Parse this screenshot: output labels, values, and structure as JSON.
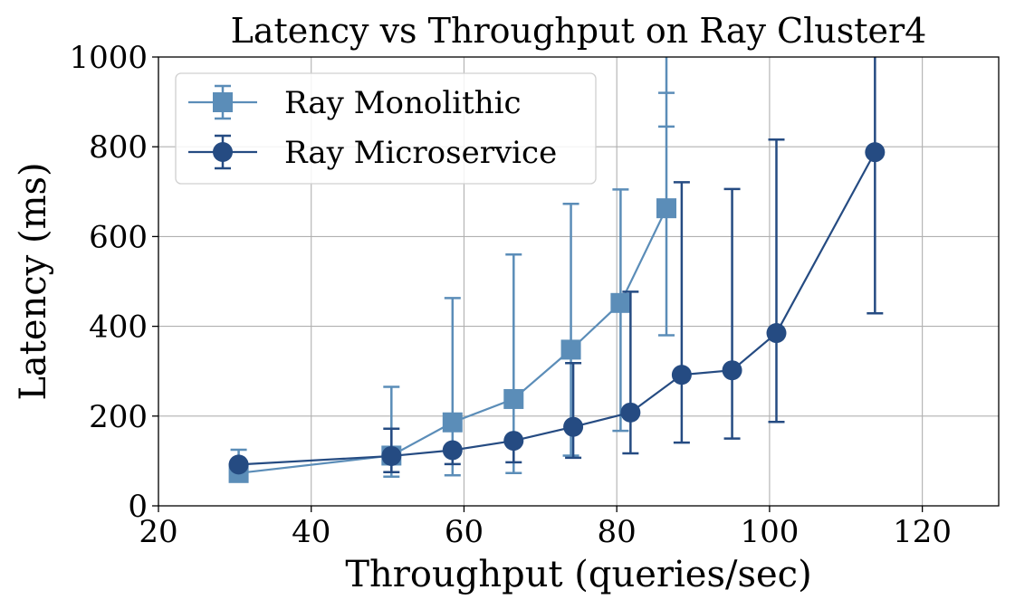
{
  "chart_data": {
    "type": "line",
    "title": "Latency vs Throughput on Ray Cluster4",
    "xlabel": "Throughput (queries/sec)",
    "ylabel": "Latency (ms)",
    "xlim": [
      20,
      130
    ],
    "ylim": [
      0,
      1000
    ],
    "xticks": [
      20,
      40,
      60,
      80,
      100,
      120
    ],
    "yticks": [
      0,
      200,
      400,
      600,
      800,
      1000
    ],
    "grid": true,
    "legend_position": "top-left",
    "series": [
      {
        "name": "Ray Monolithic",
        "marker": "square",
        "color": "#5b8db8",
        "points": [
          {
            "x": 30.5,
            "y": 73,
            "lo": 73,
            "hi": 125
          },
          {
            "x": 50.5,
            "y": 112,
            "lo": 65,
            "hi": 265
          },
          {
            "x": 58.5,
            "y": 186,
            "lo": 68,
            "hi": 463
          },
          {
            "x": 66.5,
            "y": 238,
            "lo": 73,
            "hi": 560
          },
          {
            "x": 74.0,
            "y": 348,
            "lo": 112,
            "hi": 673
          },
          {
            "x": 80.5,
            "y": 452,
            "lo": 167,
            "hi": 705
          },
          {
            "x": 86.5,
            "y": 663,
            "lo": 380,
            "hi": 1000,
            "extra_caps": [
              920,
              845
            ]
          }
        ]
      },
      {
        "name": "Ray Microservice",
        "marker": "circle",
        "color": "#254b82",
        "points": [
          {
            "x": 30.5,
            "y": 92,
            "lo": 92,
            "hi": 92
          },
          {
            "x": 50.5,
            "y": 111,
            "lo": 75,
            "hi": 172
          },
          {
            "x": 58.5,
            "y": 124,
            "lo": 93,
            "hi": 124
          },
          {
            "x": 66.5,
            "y": 145,
            "lo": 97,
            "hi": 145
          },
          {
            "x": 74.3,
            "y": 176,
            "lo": 107,
            "hi": 318
          },
          {
            "x": 81.8,
            "y": 208,
            "lo": 117,
            "hi": 477
          },
          {
            "x": 88.5,
            "y": 292,
            "lo": 141,
            "hi": 721
          },
          {
            "x": 95.1,
            "y": 302,
            "lo": 150,
            "hi": 706
          },
          {
            "x": 100.9,
            "y": 385,
            "lo": 187,
            "hi": 816
          },
          {
            "x": 113.8,
            "y": 788,
            "lo": 429,
            "hi": 1000
          }
        ]
      }
    ]
  }
}
